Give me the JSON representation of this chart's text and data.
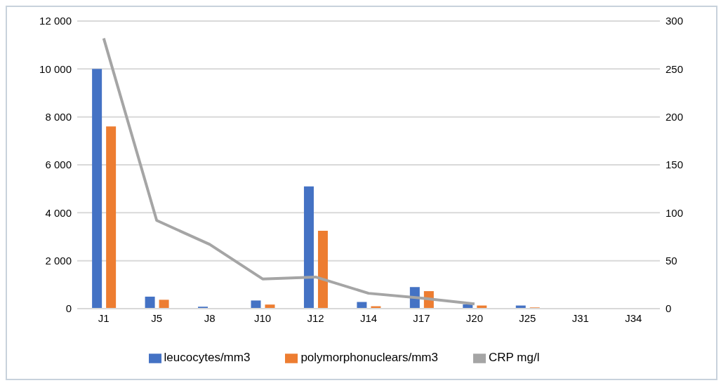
{
  "chart_data": {
    "type": "bar",
    "categories": [
      "J1",
      "J5",
      "J8",
      "J10",
      "J12",
      "J14",
      "J17",
      "J20",
      "J25",
      "J31",
      "J34"
    ],
    "series": [
      {
        "name": "leucocytes/mm3",
        "color": "#4472c4",
        "values": [
          10000,
          500,
          80,
          340,
          5100,
          280,
          900,
          180,
          130,
          0,
          0
        ]
      },
      {
        "name": "polymorphonuclears/mm3",
        "color": "#ed7d31",
        "values": [
          7600,
          370,
          0,
          170,
          3250,
          100,
          730,
          130,
          50,
          0,
          0
        ]
      },
      {
        "name": "CRP mg/l",
        "color": "#a5a5a5",
        "type": "line",
        "axis": "y2",
        "values": [
          282,
          92,
          67,
          31,
          33,
          16,
          11,
          5,
          null,
          null,
          null
        ]
      }
    ],
    "ylim": [
      0,
      12000
    ],
    "yticks": [
      0,
      {
        "value": 2000,
        "label": "2 000"
      },
      {
        "value": 4000,
        "label": "4 000"
      },
      {
        "value": 6000,
        "label": "6 000"
      },
      {
        "value": 8000,
        "label": "8 000"
      },
      {
        "value": 10000,
        "label": "10 000"
      },
      {
        "value": 12000,
        "label": "12 000"
      }
    ],
    "y2lim": [
      0,
      300
    ],
    "y2ticks": [
      0,
      50,
      100,
      150,
      200,
      250,
      300
    ],
    "grid": "y",
    "legend": "bottom",
    "marker": "none"
  }
}
